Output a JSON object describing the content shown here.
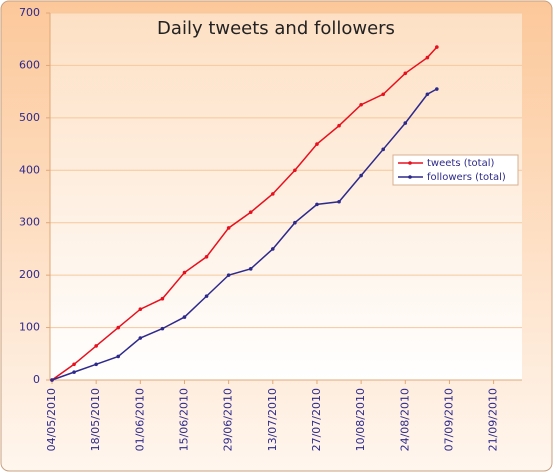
{
  "chart_data": {
    "type": "line",
    "title": "Daily tweets and followers",
    "x": [
      "04/05/2010",
      "11/05/2010",
      "18/05/2010",
      "25/05/2010",
      "01/06/2010",
      "08/06/2010",
      "15/06/2010",
      "22/06/2010",
      "29/06/2010",
      "06/07/2010",
      "13/07/2010",
      "20/07/2010",
      "27/07/2010",
      "03/08/2010",
      "10/08/2010",
      "17/08/2010",
      "24/08/2010",
      "31/08/2010",
      "03/09/2010"
    ],
    "series": [
      {
        "name": "tweets (total)",
        "color": "#e8101e",
        "values": [
          0,
          30,
          65,
          100,
          135,
          155,
          205,
          235,
          290,
          320,
          355,
          400,
          450,
          485,
          525,
          545,
          585,
          615,
          635
        ]
      },
      {
        "name": "followers (total)",
        "color": "#2e2a8c",
        "values": [
          0,
          15,
          30,
          45,
          80,
          98,
          120,
          160,
          200,
          212,
          250,
          300,
          335,
          340,
          390,
          440,
          490,
          545,
          555
        ]
      }
    ],
    "xlim": [
      "04/05/2010",
      "30/09/2010"
    ],
    "xticks": [
      "04/05/2010",
      "18/05/2010",
      "01/06/2010",
      "15/06/2010",
      "29/06/2010",
      "13/07/2010",
      "27/07/2010",
      "10/08/2010",
      "24/08/2010",
      "07/09/2010",
      "21/09/2010"
    ],
    "ylim": [
      0,
      700
    ],
    "yticks": [
      0,
      100,
      200,
      300,
      400,
      500,
      600,
      700
    ],
    "grid": true,
    "legend": "right"
  }
}
